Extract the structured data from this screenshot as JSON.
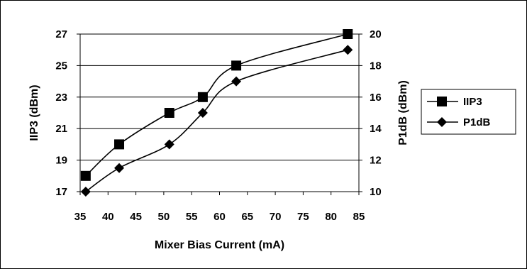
{
  "chart_data": {
    "type": "line",
    "title": "",
    "xlabel": "Mixer Bias Current (mA)",
    "ylabel": "IIP3 (dBm)",
    "y2label": "P1dB (dBm)",
    "xlim": [
      35,
      85
    ],
    "ylim": [
      17,
      27
    ],
    "y2lim": [
      10,
      20
    ],
    "x_ticks": [
      35,
      40,
      45,
      50,
      55,
      60,
      65,
      70,
      75,
      80,
      85
    ],
    "y_ticks": [
      17,
      19,
      21,
      23,
      25,
      27
    ],
    "y2_ticks": [
      10,
      12,
      14,
      16,
      18,
      20
    ],
    "grid": true,
    "legend_position": "right",
    "series": [
      {
        "name": "IIP3",
        "axis": "left",
        "marker": "square",
        "color": "#000000",
        "x": [
          36,
          42,
          51,
          57,
          63,
          83
        ],
        "y": [
          18,
          20,
          22,
          23,
          25,
          27
        ]
      },
      {
        "name": "P1dB",
        "axis": "right",
        "marker": "diamond",
        "color": "#000000",
        "x": [
          36,
          42,
          51,
          57,
          63,
          83
        ],
        "y": [
          10,
          11.5,
          13,
          15,
          17,
          19
        ]
      }
    ]
  }
}
